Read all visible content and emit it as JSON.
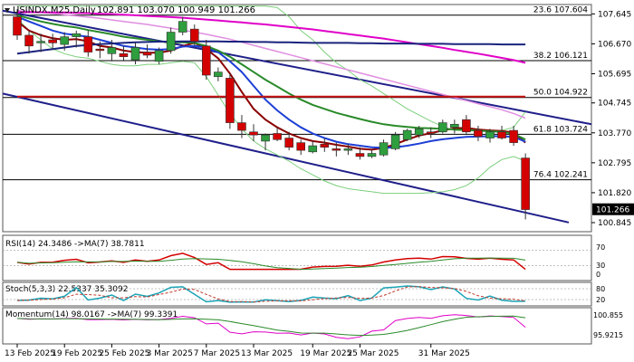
{
  "header": {
    "symbol": "USINDX.M25,Daily",
    "ohlc": "102.891 103.070 100.949 101.266"
  },
  "colors": {
    "bull": "#2e9e3e",
    "bear": "#d40000",
    "ma_red": "#8b0000",
    "ma_blue": "#1c3fd6",
    "ma_green": "#2a8a2a",
    "ma_pink_light": "#e08ee0",
    "ma_magenta": "#e000c8",
    "ma_navy": "#1a237e",
    "bollinger": "#7ccf7c",
    "channel": "#1f1f8a",
    "fib_line": "#000000",
    "horizontal_red": "#c81414"
  },
  "chart_data": {
    "type": "candlestick",
    "y_range": [
      100.55,
      107.95
    ],
    "price_ticks": [
      "107.645",
      "106.670",
      "105.695",
      "104.745",
      "103.770",
      "102.795",
      "101.820",
      "100.845"
    ],
    "current_price_label": "101.266",
    "fib_levels": [
      {
        "label": "23.6 107.604",
        "value": 107.604
      },
      {
        "label": "38.2 106.121",
        "value": 106.121
      },
      {
        "label": "50.0 104.922",
        "value": 104.922
      },
      {
        "label": "61.8 103.724",
        "value": 103.724
      },
      {
        "label": "76.4 102.241",
        "value": 102.241
      }
    ],
    "x_labels": [
      "13 Feb 2025",
      "19 Feb 2025",
      "25 Feb 2025",
      "3 Mar 2025",
      "7 Mar 2025",
      "13 Mar 2025",
      "19 Mar 2025",
      "25 Mar 2025",
      "31 Mar 2025"
    ],
    "candles": [
      {
        "o": 107.55,
        "h": 107.8,
        "l": 106.8,
        "c": 106.95
      },
      {
        "o": 106.95,
        "h": 107.1,
        "l": 106.35,
        "c": 106.6
      },
      {
        "o": 106.7,
        "h": 107.0,
        "l": 106.4,
        "c": 106.75
      },
      {
        "o": 106.8,
        "h": 107.0,
        "l": 106.5,
        "c": 106.7
      },
      {
        "o": 106.65,
        "h": 107.05,
        "l": 106.45,
        "c": 106.9
      },
      {
        "o": 106.9,
        "h": 107.1,
        "l": 106.55,
        "c": 107.0
      },
      {
        "o": 106.9,
        "h": 107.1,
        "l": 106.25,
        "c": 106.4
      },
      {
        "o": 106.5,
        "h": 106.75,
        "l": 106.2,
        "c": 106.45
      },
      {
        "o": 106.35,
        "h": 106.8,
        "l": 106.1,
        "c": 106.55
      },
      {
        "o": 106.35,
        "h": 106.6,
        "l": 106.1,
        "c": 106.25
      },
      {
        "o": 106.15,
        "h": 106.7,
        "l": 106.0,
        "c": 106.55
      },
      {
        "o": 106.4,
        "h": 106.65,
        "l": 106.2,
        "c": 106.3
      },
      {
        "o": 106.1,
        "h": 106.55,
        "l": 106.0,
        "c": 106.45
      },
      {
        "o": 106.45,
        "h": 107.2,
        "l": 106.35,
        "c": 107.05
      },
      {
        "o": 107.05,
        "h": 107.55,
        "l": 106.95,
        "c": 107.4
      },
      {
        "o": 107.15,
        "h": 107.3,
        "l": 106.6,
        "c": 106.75
      },
      {
        "o": 106.6,
        "h": 106.8,
        "l": 105.5,
        "c": 105.65
      },
      {
        "o": 105.6,
        "h": 105.9,
        "l": 105.45,
        "c": 105.75
      },
      {
        "o": 105.55,
        "h": 105.7,
        "l": 103.9,
        "c": 104.1
      },
      {
        "o": 104.1,
        "h": 104.35,
        "l": 103.6,
        "c": 103.85
      },
      {
        "o": 103.8,
        "h": 104.05,
        "l": 103.5,
        "c": 103.7
      },
      {
        "o": 103.5,
        "h": 103.75,
        "l": 103.2,
        "c": 103.7
      },
      {
        "o": 103.75,
        "h": 103.95,
        "l": 103.5,
        "c": 103.55
      },
      {
        "o": 103.6,
        "h": 103.8,
        "l": 103.2,
        "c": 103.3
      },
      {
        "o": 103.45,
        "h": 103.55,
        "l": 103.05,
        "c": 103.2
      },
      {
        "o": 103.15,
        "h": 103.5,
        "l": 103.1,
        "c": 103.35
      },
      {
        "o": 103.4,
        "h": 103.6,
        "l": 103.15,
        "c": 103.3
      },
      {
        "o": 103.25,
        "h": 103.45,
        "l": 103.0,
        "c": 103.2
      },
      {
        "o": 103.2,
        "h": 103.4,
        "l": 103.05,
        "c": 103.25
      },
      {
        "o": 103.1,
        "h": 103.3,
        "l": 102.9,
        "c": 103.0
      },
      {
        "o": 103.0,
        "h": 103.2,
        "l": 102.95,
        "c": 103.1
      },
      {
        "o": 103.05,
        "h": 103.55,
        "l": 103.0,
        "c": 103.45
      },
      {
        "o": 103.25,
        "h": 103.8,
        "l": 103.2,
        "c": 103.7
      },
      {
        "o": 103.55,
        "h": 103.9,
        "l": 103.5,
        "c": 103.85
      },
      {
        "o": 103.7,
        "h": 104.0,
        "l": 103.6,
        "c": 103.9
      },
      {
        "o": 103.8,
        "h": 103.95,
        "l": 103.6,
        "c": 103.75
      },
      {
        "o": 103.8,
        "h": 104.2,
        "l": 103.75,
        "c": 104.1
      },
      {
        "o": 103.95,
        "h": 104.2,
        "l": 103.75,
        "c": 104.05
      },
      {
        "o": 104.2,
        "h": 104.35,
        "l": 103.7,
        "c": 103.8
      },
      {
        "o": 103.85,
        "h": 104.0,
        "l": 103.5,
        "c": 103.65
      },
      {
        "o": 103.6,
        "h": 103.9,
        "l": 103.45,
        "c": 103.8
      },
      {
        "o": 103.8,
        "h": 104.0,
        "l": 103.55,
        "c": 103.6
      },
      {
        "o": 103.85,
        "h": 104.0,
        "l": 103.35,
        "c": 103.45
      },
      {
        "o": 102.95,
        "h": 103.1,
        "l": 100.95,
        "c": 101.27
      }
    ],
    "moving_averages": [
      {
        "color_key": "ma_red",
        "values": [
          107.4,
          107.1,
          106.95,
          106.85,
          106.8,
          106.82,
          106.75,
          106.6,
          106.55,
          106.45,
          106.4,
          106.38,
          106.38,
          106.45,
          106.6,
          106.7,
          106.5,
          106.2,
          105.7,
          105.1,
          104.55,
          104.2,
          103.95,
          103.75,
          103.6,
          103.5,
          103.45,
          103.38,
          103.32,
          103.25,
          103.22,
          103.28,
          103.4,
          103.55,
          103.68,
          103.76,
          103.85,
          103.92,
          103.93,
          103.88,
          103.85,
          103.83,
          103.78,
          103.45
        ]
      },
      {
        "color_key": "ma_blue",
        "values": [
          107.55,
          107.4,
          107.25,
          107.1,
          107.0,
          106.95,
          106.9,
          106.8,
          106.7,
          106.6,
          106.55,
          106.5,
          106.48,
          106.5,
          106.58,
          106.6,
          106.55,
          106.4,
          106.1,
          105.75,
          105.3,
          104.85,
          104.5,
          104.2,
          103.95,
          103.75,
          103.6,
          103.48,
          103.4,
          103.35,
          103.3,
          103.28,
          103.3,
          103.35,
          103.42,
          103.5,
          103.56,
          103.6,
          103.64,
          103.65,
          103.66,
          103.66,
          103.64,
          103.48
        ]
      },
      {
        "color_key": "ma_green",
        "values": [
          107.6,
          107.5,
          107.4,
          107.32,
          107.25,
          107.2,
          107.12,
          107.05,
          106.98,
          106.9,
          106.85,
          106.8,
          106.75,
          106.72,
          106.72,
          106.7,
          106.6,
          106.45,
          106.25,
          106.0,
          105.75,
          105.5,
          105.28,
          105.05,
          104.85,
          104.68,
          104.55,
          104.42,
          104.32,
          104.22,
          104.13,
          104.05,
          104.0,
          103.96,
          103.93,
          103.92,
          103.9,
          103.88,
          103.86,
          103.84,
          103.82,
          103.8,
          103.74,
          103.55
        ]
      },
      {
        "color_key": "ma_pink_light",
        "values": [
          107.75,
          107.72,
          107.69,
          107.66,
          107.62,
          107.58,
          107.54,
          107.5,
          107.45,
          107.4,
          107.35,
          107.3,
          107.24,
          107.18,
          107.12,
          107.05,
          106.98,
          106.9,
          106.82,
          106.72,
          106.62,
          106.52,
          106.42,
          106.32,
          106.22,
          106.12,
          106.02,
          105.92,
          105.82,
          105.72,
          105.62,
          105.52,
          105.42,
          105.32,
          105.22,
          105.12,
          105.02,
          104.92,
          104.82,
          104.72,
          104.62,
          104.52,
          104.4,
          104.25
        ]
      },
      {
        "color_key": "ma_magenta",
        "values": [
          107.7,
          107.7,
          107.7,
          107.69,
          107.69,
          107.68,
          107.67,
          107.65,
          107.64,
          107.62,
          107.6,
          107.58,
          107.56,
          107.54,
          107.52,
          107.49,
          107.46,
          107.43,
          107.4,
          107.37,
          107.33,
          107.3,
          107.26,
          107.22,
          107.18,
          107.14,
          107.09,
          107.04,
          106.99,
          106.94,
          106.89,
          106.84,
          106.78,
          106.72,
          106.66,
          106.6,
          106.54,
          106.47,
          106.41,
          106.35,
          106.28,
          106.21,
          106.14,
          106.05
        ]
      },
      {
        "color_key": "ma_navy",
        "values": [
          106.35,
          106.4,
          106.45,
          106.5,
          106.55,
          106.6,
          106.63,
          106.66,
          106.68,
          106.7,
          106.72,
          106.73,
          106.74,
          106.74,
          106.75,
          106.75,
          106.75,
          106.75,
          106.74,
          106.74,
          106.73,
          106.73,
          106.72,
          106.72,
          106.71,
          106.7,
          106.7,
          106.7,
          106.7,
          106.69,
          106.69,
          106.68,
          106.68,
          106.68,
          106.67,
          106.67,
          106.67,
          106.66,
          106.66,
          106.66,
          106.66,
          106.65,
          106.65,
          106.65
        ]
      },
      {
        "color_key": "horizontal_red",
        "values": [
          104.95,
          104.95,
          104.95,
          104.95,
          104.95,
          104.95,
          104.95,
          104.95,
          104.95,
          104.95,
          104.95,
          104.95,
          104.95,
          104.95,
          104.95,
          104.95,
          104.95,
          104.95,
          104.95,
          104.95,
          104.95,
          104.95,
          104.95,
          104.95,
          104.95,
          104.95,
          104.95,
          104.95,
          104.95,
          104.95,
          104.95,
          104.95,
          104.95,
          104.95,
          104.95,
          104.95,
          104.95,
          104.95,
          104.95,
          104.95,
          104.95,
          104.95,
          104.95,
          104.95
        ]
      }
    ],
    "bollinger": {
      "upper": [
        107.9,
        107.9,
        107.9,
        107.9,
        107.9,
        107.9,
        107.9,
        107.9,
        107.9,
        107.9,
        107.9,
        107.9,
        107.9,
        107.9,
        107.9,
        107.9,
        107.9,
        107.9,
        107.9,
        107.9,
        107.9,
        107.9,
        107.85,
        107.55,
        107.1,
        106.8,
        106.4,
        106.05,
        105.8,
        105.5,
        105.3,
        105.05,
        104.8,
        104.55,
        104.35,
        104.15,
        103.98,
        103.85,
        103.85,
        103.85,
        103.85,
        103.85,
        103.95,
        104.45
      ],
      "lower": [
        107.5,
        107.1,
        106.8,
        106.5,
        106.35,
        106.25,
        106.2,
        106.1,
        106.0,
        105.95,
        105.95,
        106.0,
        106.0,
        106.05,
        106.1,
        106.05,
        105.6,
        105.0,
        104.4,
        103.9,
        103.5,
        103.25,
        103.05,
        102.85,
        102.6,
        102.4,
        102.2,
        102.05,
        101.95,
        101.9,
        101.85,
        101.8,
        101.8,
        101.8,
        101.8,
        101.82,
        101.85,
        101.92,
        102.05,
        102.3,
        102.65,
        102.9,
        103.0,
        102.85
      ]
    },
    "rsi": {
      "label": "RSI(14) 24.3486 ->MA(7) 38.7811",
      "levels": [
        "70",
        "30",
        "0"
      ]
    },
    "stoch": {
      "label": "Stoch(5,3,3) 22.5337 35.3092",
      "levels": [
        "80",
        "20"
      ]
    },
    "momentum": {
      "label": "Momentum(14) 98.0167 ->MA(7) 99.3391",
      "levels": [
        "100.855",
        "95.9215"
      ]
    }
  }
}
